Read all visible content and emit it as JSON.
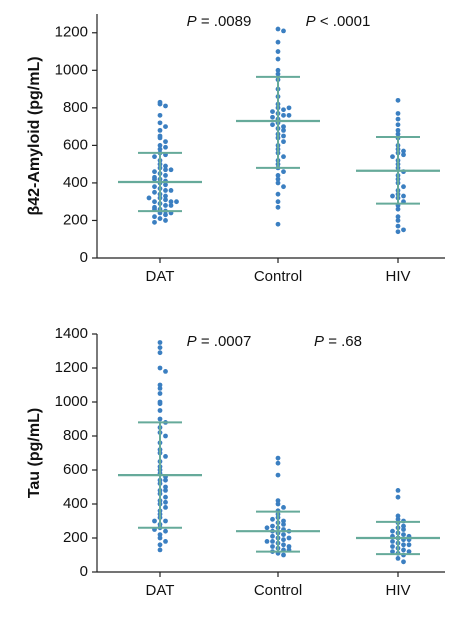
{
  "chart_data": [
    {
      "type": "dotplot",
      "ylabel": "β42-Amyloid (pg/mL)",
      "categories": [
        "DAT",
        "Control",
        "HIV"
      ],
      "ylim": [
        0,
        1300
      ],
      "yticks": [
        0,
        200,
        400,
        600,
        800,
        1000,
        1200
      ],
      "color": "#3b7fc1",
      "line_color": "#66aa9a",
      "annotations": [
        "P = .0089",
        "P < .0001"
      ],
      "groups": [
        {
          "values": [
            820,
            830,
            810,
            760,
            720,
            700,
            680,
            650,
            640,
            620,
            600,
            590,
            580,
            560,
            550,
            540,
            520,
            500,
            490,
            480,
            470,
            460,
            450,
            440,
            430,
            420,
            410,
            400,
            390,
            380,
            370,
            360,
            350,
            340,
            330,
            320,
            310,
            300,
            300,
            290,
            280,
            270,
            260,
            250,
            240,
            230,
            220,
            210,
            200,
            190,
            280,
            320,
            360,
            420,
            470,
            260,
            240,
            300
          ],
          "mean": 405,
          "sd_low": 250,
          "sd_high": 560
        },
        {
          "values": [
            1220,
            1210,
            1150,
            1100,
            1060,
            1000,
            980,
            950,
            900,
            860,
            820,
            800,
            790,
            780,
            770,
            760,
            750,
            740,
            720,
            700,
            690,
            680,
            660,
            640,
            620,
            600,
            580,
            560,
            540,
            520,
            500,
            480,
            460,
            440,
            420,
            400,
            380,
            340,
            300,
            270,
            180,
            800,
            760,
            710,
            650
          ],
          "mean": 730,
          "sd_low": 480,
          "sd_high": 965
        },
        {
          "values": [
            840,
            770,
            740,
            710,
            680,
            660,
            640,
            600,
            580,
            560,
            550,
            540,
            520,
            500,
            480,
            460,
            440,
            400,
            380,
            360,
            340,
            330,
            320,
            300,
            280,
            260,
            220,
            200,
            170,
            140,
            150,
            330,
            420,
            570
          ],
          "mean": 465,
          "sd_low": 290,
          "sd_high": 645
        }
      ]
    },
    {
      "type": "dotplot",
      "ylabel": "Tau (pg/mL)",
      "categories": [
        "DAT",
        "Control",
        "HIV"
      ],
      "ylim": [
        0,
        1400
      ],
      "yticks": [
        0,
        200,
        400,
        600,
        800,
        1000,
        1200,
        1400
      ],
      "color": "#3b7fc1",
      "line_color": "#66aa9a",
      "annotations": [
        "P = .0007",
        "P = .68"
      ],
      "groups": [
        {
          "values": [
            1350,
            1320,
            1290,
            1200,
            1180,
            1100,
            1080,
            1050,
            1000,
            990,
            950,
            900,
            880,
            850,
            820,
            800,
            760,
            720,
            700,
            680,
            650,
            620,
            600,
            580,
            560,
            540,
            520,
            500,
            480,
            460,
            440,
            420,
            400,
            380,
            360,
            340,
            320,
            300,
            280,
            260,
            240,
            220,
            200,
            180,
            160,
            130,
            540,
            480,
            410,
            300,
            250
          ],
          "mean": 570,
          "sd_low": 260,
          "sd_high": 880
        },
        {
          "values": [
            670,
            640,
            570,
            420,
            400,
            380,
            360,
            340,
            320,
            300,
            290,
            280,
            270,
            260,
            250,
            240,
            230,
            220,
            210,
            200,
            190,
            180,
            170,
            160,
            150,
            140,
            130,
            120,
            110,
            100,
            240,
            200,
            180,
            150,
            130,
            260,
            310
          ],
          "mean": 240,
          "sd_low": 120,
          "sd_high": 355
        },
        {
          "values": [
            480,
            440,
            330,
            310,
            300,
            290,
            270,
            260,
            250,
            240,
            230,
            220,
            210,
            200,
            190,
            180,
            170,
            160,
            150,
            140,
            130,
            120,
            110,
            100,
            80,
            60,
            210,
            190,
            160,
            120
          ],
          "mean": 200,
          "sd_low": 105,
          "sd_high": 295
        }
      ]
    }
  ]
}
